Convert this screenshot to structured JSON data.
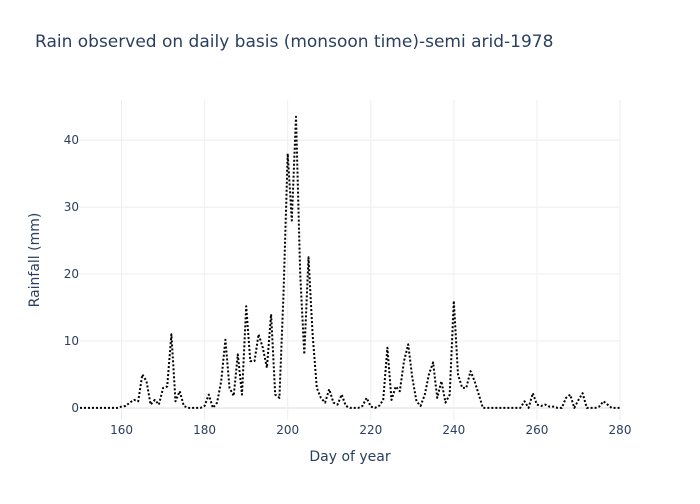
{
  "chart_data": {
    "type": "line",
    "title": "Rain observed on daily basis (monsoon time)-semi arid-1978",
    "xlabel": "Day of year",
    "ylabel": "Rainfall (mm)",
    "xlim": [
      150,
      280
    ],
    "ylim": [
      -1.8,
      46
    ],
    "x_ticks": [
      160,
      180,
      200,
      220,
      240,
      260,
      280
    ],
    "y_ticks": [
      0,
      10,
      20,
      30,
      40
    ],
    "grid": true,
    "line_style": "dotted",
    "line_color": "#000000",
    "series": [
      {
        "x": [
          150,
          151,
          152,
          153,
          154,
          155,
          156,
          157,
          158,
          159,
          160,
          161,
          162,
          163,
          164,
          165,
          166,
          167,
          168,
          169,
          170,
          171,
          172,
          173,
          174,
          175,
          176,
          177,
          178,
          179,
          180,
          181,
          182,
          183,
          184,
          185,
          186,
          187,
          188,
          189,
          190,
          191,
          192,
          193,
          194,
          195,
          196,
          197,
          198,
          199,
          200,
          201,
          202,
          203,
          204,
          205,
          206,
          207,
          208,
          209,
          210,
          211,
          212,
          213,
          214,
          215,
          216,
          217,
          218,
          219,
          220,
          221,
          222,
          223,
          224,
          225,
          226,
          227,
          228,
          229,
          230,
          231,
          232,
          233,
          234,
          235,
          236,
          237,
          238,
          239,
          240,
          241,
          242,
          243,
          244,
          245,
          246,
          247,
          248,
          249,
          250,
          251,
          252,
          253,
          254,
          255,
          256,
          257,
          258,
          259,
          260,
          261,
          262,
          263,
          264,
          265,
          266,
          267,
          268,
          269,
          270,
          271,
          272,
          273,
          274,
          275,
          276,
          277,
          278,
          279,
          280
        ],
        "y": [
          0,
          0,
          0,
          0,
          0,
          0,
          0,
          0,
          0,
          0,
          0.2,
          0.3,
          0.8,
          1.2,
          1.0,
          5.0,
          4.0,
          0.5,
          1.2,
          0.5,
          3.0,
          3.2,
          11.0,
          1.0,
          2.5,
          0.3,
          0,
          0,
          0,
          0,
          0.3,
          2.0,
          0,
          0.8,
          4.0,
          10.2,
          3.0,
          1.8,
          8.0,
          2.0,
          15.2,
          7.0,
          7.0,
          11.0,
          9.0,
          6.0,
          14.0,
          2.0,
          1.5,
          17.0,
          38.0,
          28.0,
          43.5,
          20.0,
          8.0,
          22.5,
          11.0,
          3.0,
          1.5,
          0.8,
          2.8,
          0.8,
          0.5,
          2.0,
          0.3,
          0,
          0,
          0,
          0.3,
          1.5,
          0.2,
          0,
          0.3,
          1.2,
          9.0,
          1.2,
          3.2,
          2.5,
          7.0,
          9.5,
          4.5,
          1.0,
          0.3,
          2.0,
          5.0,
          6.8,
          1.5,
          4.0,
          0.8,
          2.0,
          16.0,
          5.0,
          3.0,
          3.0,
          5.5,
          4.0,
          2.0,
          0,
          0,
          0,
          0,
          0,
          0,
          0,
          0,
          0,
          0,
          1.0,
          0,
          2.2,
          0.5,
          0.3,
          0.5,
          0.2,
          0.2,
          0,
          0,
          1.5,
          2.0,
          0,
          1.2,
          2.2,
          0,
          0,
          0,
          0.2,
          1.0,
          0.5,
          0,
          0,
          0
        ]
      }
    ]
  }
}
